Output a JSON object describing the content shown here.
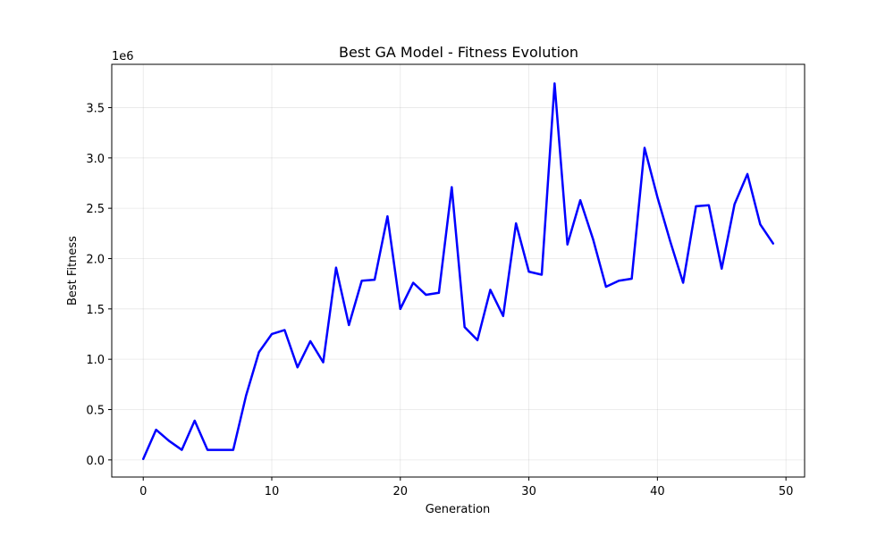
{
  "chart_data": {
    "type": "line",
    "title": "Best GA Model - Fitness Evolution",
    "xlabel": "Generation",
    "ylabel": "Best Fitness",
    "y_offset_label": "1e6",
    "xlim": [
      -2.45,
      51.45
    ],
    "ylim": [
      -0.17,
      3.93
    ],
    "x_ticks": [
      0,
      10,
      20,
      30,
      40,
      50
    ],
    "y_ticks": [
      0.0,
      0.5,
      1.0,
      1.5,
      2.0,
      2.5,
      3.0,
      3.5
    ],
    "y_tick_labels": [
      "0.0",
      "0.5",
      "1.0",
      "1.5",
      "2.0",
      "2.5",
      "3.0",
      "3.5"
    ],
    "grid": true,
    "series": [
      {
        "color": "#0000ff",
        "x": [
          0,
          1,
          2,
          3,
          4,
          5,
          6,
          7,
          8,
          9,
          10,
          11,
          12,
          13,
          14,
          15,
          16,
          17,
          18,
          19,
          20,
          21,
          22,
          23,
          24,
          25,
          26,
          27,
          28,
          29,
          30,
          31,
          32,
          33,
          34,
          35,
          36,
          37,
          38,
          39,
          40,
          41,
          42,
          43,
          44,
          45,
          46,
          47,
          48,
          49
        ],
        "values": [
          0.01,
          0.3,
          0.19,
          0.1,
          0.39,
          0.1,
          0.1,
          0.1,
          0.64,
          1.07,
          1.25,
          1.29,
          0.92,
          1.18,
          0.97,
          1.91,
          1.34,
          1.78,
          1.79,
          2.42,
          1.5,
          1.76,
          1.64,
          1.66,
          2.71,
          1.32,
          1.19,
          1.69,
          1.43,
          2.35,
          1.87,
          1.84,
          3.74,
          2.14,
          2.58,
          2.19,
          1.72,
          1.78,
          1.8,
          3.1,
          2.61,
          2.17,
          1.76,
          2.52,
          2.53,
          1.9,
          2.54,
          2.84,
          2.34,
          2.15
        ]
      }
    ]
  }
}
